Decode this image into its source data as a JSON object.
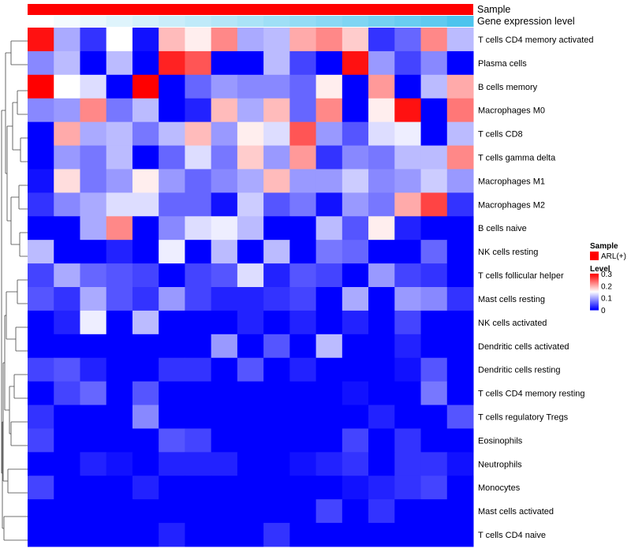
{
  "chart_data": {
    "type": "heatmap",
    "annotations": {
      "sample_label": "Sample",
      "sample_color": "#ff0000",
      "gene_label": "Gene expression level",
      "gene_low_color": "#ffffff",
      "gene_high_color": "#4dc4ee",
      "gene_gradient": [
        0.0,
        0.06,
        0.12,
        0.18,
        0.24,
        0.3,
        0.36,
        0.42,
        0.48,
        0.54,
        0.6,
        0.66,
        0.72,
        0.78,
        0.84,
        0.9,
        1.0
      ]
    },
    "rows": [
      "T cells CD4 memory activated",
      "Plasma cells",
      "B cells memory",
      "Macrophages M0",
      "T cells CD8",
      "T cells gamma delta",
      "Macrophages M1",
      "Macrophages M2",
      "B cells naive",
      "NK cells resting",
      "T cells follicular helper",
      "Mast cells resting",
      "NK cells activated",
      "Dendritic cells activated",
      "Dendritic cells resting",
      "T cells CD4 memory resting",
      "T cells regulatory  Tregs",
      "Eosinophils",
      "Neutrophils",
      "Monocytes",
      "Mast cells activated",
      "T cells CD4 naive"
    ],
    "values": [
      [
        0.29,
        0.1,
        0.03,
        0.15,
        0.01,
        0.19,
        0.16,
        0.22,
        0.1,
        0.11,
        0.2,
        0.22,
        0.18,
        0.03,
        0.06,
        0.22,
        0.11
      ],
      [
        0.08,
        0.11,
        0.0,
        0.11,
        0.0,
        0.28,
        0.25,
        0.0,
        0.0,
        0.11,
        0.04,
        0.0,
        0.29,
        0.09,
        0.04,
        0.08,
        0.0
      ],
      [
        0.3,
        0.15,
        0.13,
        0.0,
        0.3,
        0.0,
        0.06,
        0.09,
        0.08,
        0.08,
        0.06,
        0.16,
        0.0,
        0.21,
        0.0,
        0.11,
        0.2
      ],
      [
        0.08,
        0.09,
        0.22,
        0.07,
        0.11,
        0.0,
        0.02,
        0.19,
        0.1,
        0.19,
        0.06,
        0.22,
        0.0,
        0.16,
        0.29,
        0.0,
        0.23
      ],
      [
        0.0,
        0.2,
        0.1,
        0.11,
        0.07,
        0.11,
        0.19,
        0.09,
        0.16,
        0.13,
        0.25,
        0.09,
        0.05,
        0.13,
        0.14,
        0.0,
        0.11
      ],
      [
        0.0,
        0.09,
        0.07,
        0.11,
        0.0,
        0.06,
        0.13,
        0.07,
        0.18,
        0.09,
        0.21,
        0.03,
        0.08,
        0.07,
        0.11,
        0.11,
        0.22
      ],
      [
        0.01,
        0.17,
        0.07,
        0.09,
        0.16,
        0.09,
        0.06,
        0.08,
        0.1,
        0.19,
        0.09,
        0.09,
        0.12,
        0.08,
        0.09,
        0.12,
        0.09
      ],
      [
        0.03,
        0.08,
        0.1,
        0.13,
        0.13,
        0.06,
        0.06,
        0.01,
        0.12,
        0.05,
        0.07,
        0.01,
        0.09,
        0.07,
        0.2,
        0.26,
        0.03
      ],
      [
        0.0,
        0.0,
        0.1,
        0.22,
        0.0,
        0.08,
        0.13,
        0.14,
        0.11,
        0.0,
        0.0,
        0.11,
        0.05,
        0.16,
        0.02,
        0.0,
        0.0
      ],
      [
        0.11,
        0.0,
        0.0,
        0.02,
        0.0,
        0.14,
        0.0,
        0.11,
        0.0,
        0.11,
        0.0,
        0.07,
        0.06,
        0.0,
        0.0,
        0.06,
        0.0
      ],
      [
        0.04,
        0.1,
        0.06,
        0.05,
        0.04,
        0.0,
        0.04,
        0.05,
        0.13,
        0.02,
        0.05,
        0.04,
        0.0,
        0.09,
        0.04,
        0.03,
        0.0
      ],
      [
        0.05,
        0.03,
        0.1,
        0.05,
        0.03,
        0.09,
        0.04,
        0.02,
        0.02,
        0.03,
        0.04,
        0.0,
        0.1,
        0.0,
        0.09,
        0.08,
        0.03
      ],
      [
        0.0,
        0.02,
        0.14,
        0.0,
        0.11,
        0.0,
        0.0,
        0.0,
        0.02,
        0.0,
        0.02,
        0.0,
        0.02,
        0.0,
        0.04,
        0.0,
        0.0
      ],
      [
        0.0,
        0.0,
        0.0,
        0.0,
        0.0,
        0.0,
        0.0,
        0.09,
        0.0,
        0.05,
        0.0,
        0.11,
        0.0,
        0.0,
        0.02,
        0.0,
        0.0
      ],
      [
        0.04,
        0.05,
        0.02,
        0.0,
        0.0,
        0.03,
        0.03,
        0.0,
        0.05,
        0.0,
        0.02,
        0.0,
        0.0,
        0.0,
        0.01,
        0.05,
        0.0
      ],
      [
        0.0,
        0.04,
        0.06,
        0.0,
        0.05,
        0.0,
        0.0,
        0.0,
        0.0,
        0.0,
        0.0,
        0.0,
        0.01,
        0.0,
        0.0,
        0.07,
        0.0
      ],
      [
        0.03,
        0.0,
        0.0,
        0.0,
        0.08,
        0.0,
        0.0,
        0.0,
        0.0,
        0.0,
        0.0,
        0.0,
        0.0,
        0.02,
        0.0,
        0.0,
        0.05
      ],
      [
        0.04,
        0.0,
        0.0,
        0.0,
        0.0,
        0.05,
        0.04,
        0.0,
        0.0,
        0.0,
        0.0,
        0.0,
        0.04,
        0.0,
        0.03,
        0.0,
        0.0
      ],
      [
        0.0,
        0.0,
        0.02,
        0.01,
        0.0,
        0.02,
        0.02,
        0.02,
        0.0,
        0.0,
        0.01,
        0.02,
        0.03,
        0.0,
        0.03,
        0.03,
        0.01
      ],
      [
        0.04,
        0.0,
        0.0,
        0.0,
        0.02,
        0.0,
        0.0,
        0.0,
        0.0,
        0.0,
        0.0,
        0.0,
        0.01,
        0.02,
        0.03,
        0.04,
        0.0
      ],
      [
        0.0,
        0.0,
        0.0,
        0.0,
        0.0,
        0.0,
        0.0,
        0.0,
        0.0,
        0.0,
        0.0,
        0.04,
        0.0,
        0.03,
        0.0,
        0.0,
        0.0
      ],
      [
        0.0,
        0.0,
        0.0,
        0.0,
        0.0,
        0.02,
        0.0,
        0.0,
        0.0,
        0.03,
        0.0,
        0.0,
        0.0,
        0.0,
        0.0,
        0.0,
        0.0
      ]
    ],
    "color_scale": {
      "min": 0,
      "mid": 0.15,
      "max": 0.3,
      "low_color": "#0000ff",
      "mid_color": "#ffffff",
      "high_color": "#ff0000"
    },
    "legend": {
      "placement": "right",
      "sample_title": "Sample",
      "sample_entry": "ARL(+)",
      "level_title": "Level",
      "ticks": [
        "0.3",
        "0.2",
        "0.1",
        "0"
      ],
      "tick_values": [
        0.3,
        0.2,
        0.1,
        0
      ]
    }
  }
}
